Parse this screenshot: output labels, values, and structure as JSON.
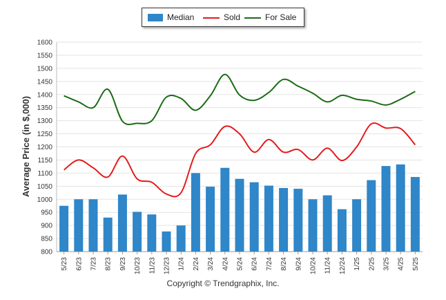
{
  "chart_data": {
    "type": "bar",
    "ylabel": "Average Price (in $,000)",
    "ylim": [
      800,
      1600
    ],
    "ytick_step": 50,
    "grid": true,
    "legend_position": "top-center",
    "categories": [
      "5/23",
      "6/23",
      "7/23",
      "8/23",
      "9/23",
      "10/23",
      "11/23",
      "12/23",
      "1/24",
      "2/24",
      "3/24",
      "4/24",
      "5/24",
      "6/24",
      "7/24",
      "8/24",
      "9/24",
      "10/24",
      "11/24",
      "12/24",
      "1/25",
      "2/25",
      "3/25",
      "4/25",
      "5/25"
    ],
    "series": [
      {
        "name": "Median",
        "kind": "bar",
        "color": "#2f86c8",
        "values": [
          975,
          1000,
          1000,
          930,
          1018,
          952,
          942,
          877,
          900,
          1100,
          1048,
          1120,
          1078,
          1065,
          1052,
          1043,
          1040,
          1000,
          1015,
          962,
          1000,
          1073,
          1127,
          1133,
          1085
        ]
      },
      {
        "name": "Sold",
        "kind": "line",
        "color": "#e41a1c",
        "values": [
          1112,
          1150,
          1120,
          1085,
          1165,
          1078,
          1065,
          1020,
          1025,
          1175,
          1208,
          1278,
          1250,
          1180,
          1228,
          1180,
          1190,
          1150,
          1195,
          1148,
          1200,
          1288,
          1272,
          1270,
          1208
        ]
      },
      {
        "name": "For Sale",
        "kind": "line",
        "color": "#1a6b14",
        "values": [
          1395,
          1372,
          1350,
          1420,
          1298,
          1290,
          1300,
          1390,
          1385,
          1340,
          1395,
          1477,
          1398,
          1378,
          1408,
          1458,
          1432,
          1405,
          1372,
          1397,
          1382,
          1375,
          1360,
          1382,
          1412
        ]
      }
    ]
  },
  "legend": {
    "median": "Median",
    "sold": "Sold",
    "for_sale": "For Sale"
  },
  "copyright": "Copyright © Trendgraphix, Inc."
}
